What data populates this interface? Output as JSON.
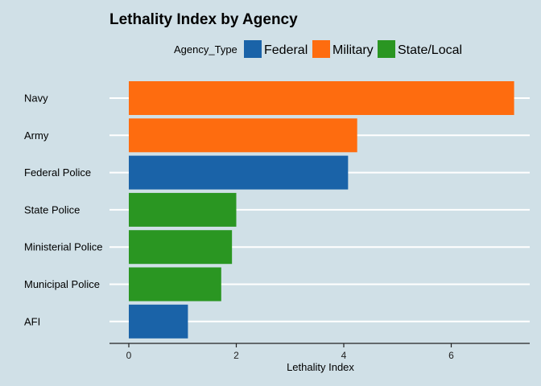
{
  "chart_data": {
    "type": "bar",
    "orientation": "horizontal",
    "title": "Lethality Index by Agency",
    "xlabel": "Lethality Index",
    "ylabel": "",
    "xlim": [
      0,
      7.4
    ],
    "xticks": [
      0,
      2,
      4,
      6
    ],
    "grid": "horizontal",
    "legend": {
      "title": "Agency_Type",
      "position": "top",
      "entries": [
        {
          "name": "Federal",
          "color": "#1a63a8"
        },
        {
          "name": "Military",
          "color": "#fe6c0f"
        },
        {
          "name": "State/Local",
          "color": "#2a9622"
        }
      ]
    },
    "categories": [
      "Navy",
      "Army",
      "Federal Police",
      "State Police",
      "Ministerial Police",
      "Municipal Police",
      "AFI"
    ],
    "values": [
      7.17,
      4.25,
      4.08,
      2.0,
      1.92,
      1.72,
      1.1
    ],
    "groups": [
      "Military",
      "Military",
      "Federal",
      "State/Local",
      "State/Local",
      "State/Local",
      "Federal"
    ]
  },
  "colors": {
    "background": "#d0e0e7",
    "grid": "#ffffff",
    "axis": "#222222"
  }
}
